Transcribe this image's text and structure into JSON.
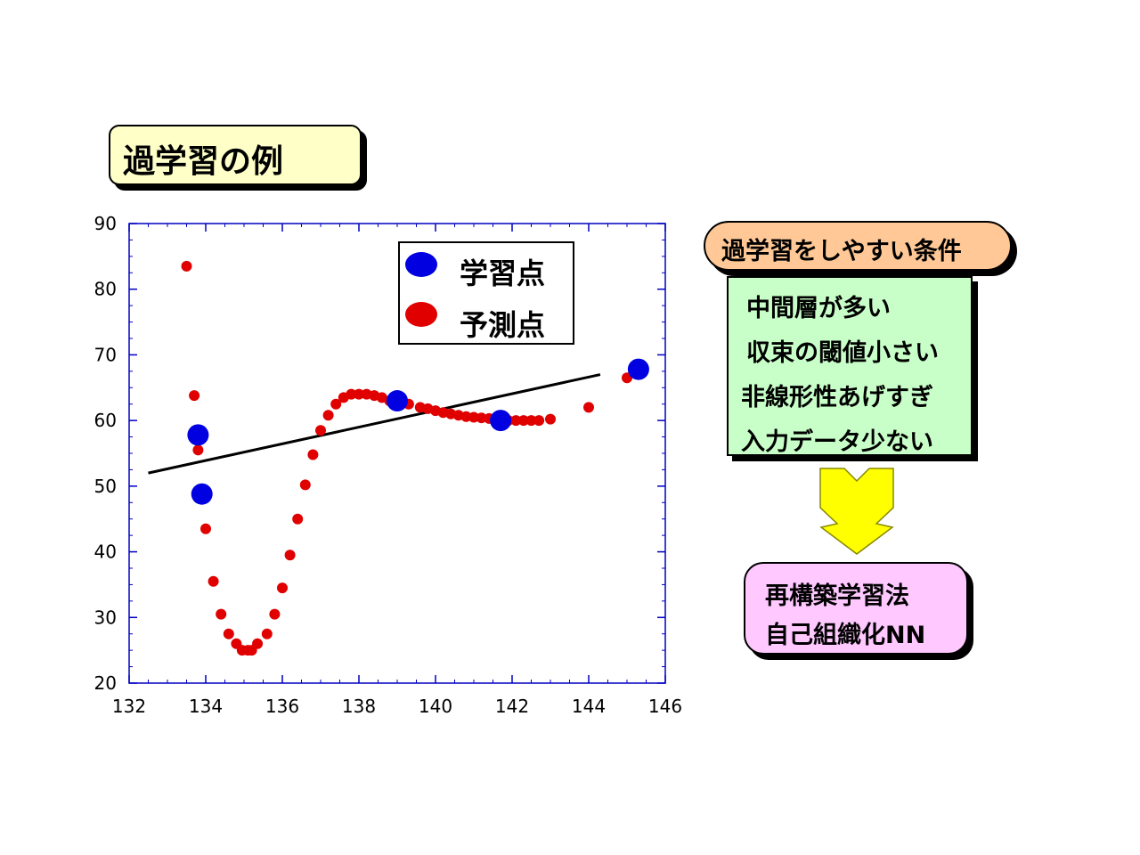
{
  "title": "過学習の例",
  "conditions": {
    "heading": "過学習をしやすい条件",
    "items": [
      "中間層が多い",
      "収束の閾値小さい",
      "非線形性あげすぎ",
      "入力データ少ない"
    ]
  },
  "methods": [
    "再構築学習法",
    "自己組織化NN"
  ],
  "colors": {
    "training": "#0000e0",
    "prediction": "#e00000",
    "axis": "#0000c0",
    "title_bg": "#ffffc8",
    "condition_bg": "#ffc896",
    "list_bg": "#c8ffc8",
    "method_bg": "#ffc8ff",
    "arrow": "#ffff00"
  },
  "chart_data": {
    "type": "scatter",
    "xlim": [
      132,
      146
    ],
    "ylim": [
      20,
      90
    ],
    "x_ticks": [
      132,
      134,
      136,
      138,
      140,
      142,
      144,
      146
    ],
    "y_ticks": [
      20,
      30,
      40,
      50,
      60,
      70,
      80,
      90
    ],
    "legend_position": "top-right",
    "series": [
      {
        "name": "学習点",
        "color": "#0000e0",
        "points": [
          [
            133.8,
            57.8
          ],
          [
            133.9,
            48.8
          ],
          [
            139.0,
            63.0
          ],
          [
            141.7,
            60.0
          ],
          [
            145.3,
            67.8
          ]
        ]
      },
      {
        "name": "予測点",
        "color": "#e00000",
        "points": [
          [
            133.5,
            83.5
          ],
          [
            133.7,
            63.8
          ],
          [
            133.8,
            55.5
          ],
          [
            134.0,
            43.5
          ],
          [
            134.2,
            35.5
          ],
          [
            134.4,
            30.5
          ],
          [
            134.6,
            27.5
          ],
          [
            134.8,
            26.0
          ],
          [
            134.95,
            25.0
          ],
          [
            135.1,
            25.0
          ],
          [
            135.2,
            25.0
          ],
          [
            135.35,
            26.0
          ],
          [
            135.6,
            27.5
          ],
          [
            135.8,
            30.5
          ],
          [
            136.0,
            34.5
          ],
          [
            136.2,
            39.5
          ],
          [
            136.4,
            45.0
          ],
          [
            136.6,
            50.2
          ],
          [
            136.8,
            54.8
          ],
          [
            137.0,
            58.5
          ],
          [
            137.2,
            60.8
          ],
          [
            137.4,
            62.5
          ],
          [
            137.6,
            63.5
          ],
          [
            137.8,
            64.0
          ],
          [
            138.0,
            64.0
          ],
          [
            138.2,
            64.0
          ],
          [
            138.4,
            63.8
          ],
          [
            138.6,
            63.5
          ],
          [
            138.8,
            63.0
          ],
          [
            139.3,
            62.5
          ],
          [
            139.6,
            62.0
          ],
          [
            139.8,
            61.8
          ],
          [
            140.0,
            61.5
          ],
          [
            140.2,
            61.2
          ],
          [
            140.4,
            61.0
          ],
          [
            140.6,
            60.8
          ],
          [
            140.8,
            60.6
          ],
          [
            141.0,
            60.5
          ],
          [
            141.2,
            60.4
          ],
          [
            141.4,
            60.3
          ],
          [
            141.6,
            60.2
          ],
          [
            141.9,
            60.0
          ],
          [
            142.1,
            60.0
          ],
          [
            142.3,
            60.0
          ],
          [
            142.5,
            60.0
          ],
          [
            142.7,
            60.0
          ],
          [
            143.0,
            60.2
          ],
          [
            144.0,
            62.0
          ],
          [
            145.0,
            66.5
          ]
        ]
      }
    ],
    "trend_line": {
      "from": [
        132.5,
        52.0
      ],
      "to": [
        144.3,
        67.0
      ],
      "color": "#000000"
    }
  }
}
